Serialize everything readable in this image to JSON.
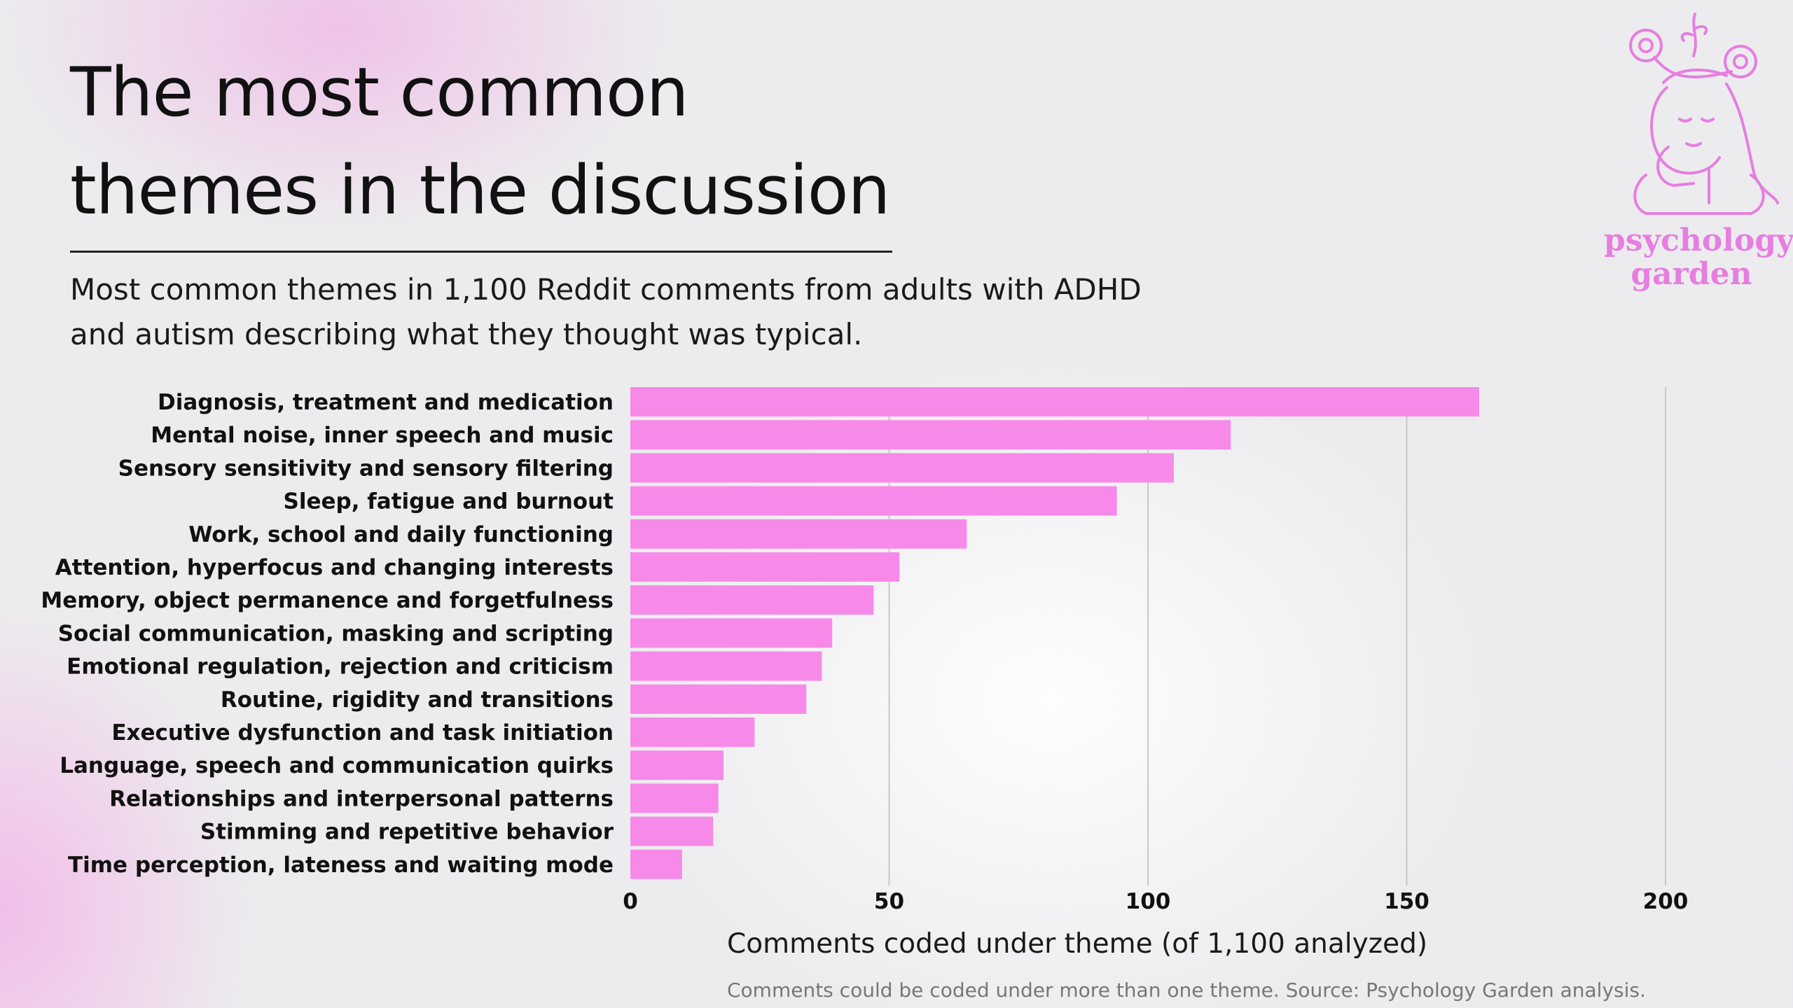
{
  "title_lines": [
    "The most common",
    "themes in the discussion"
  ],
  "subtitle_lines": [
    "Most common themes in 1,100 Reddit comments from adults with ADHD",
    "and autism describing what they thought was typical."
  ],
  "logo": {
    "line1": "psychology",
    "line2": "garden",
    "icon": "woman-with-flowers-logo"
  },
  "footnote": "Comments could be coded under more than one theme. Source: Psychology Garden analysis.",
  "colors": {
    "bar": "#f78ae9",
    "grid": "#c8c8c8",
    "accent": "#e67ee0"
  },
  "chart_data": {
    "type": "bar",
    "orientation": "horizontal",
    "categories": [
      "Diagnosis, treatment and medication",
      "Mental noise, inner speech and music",
      "Sensory sensitivity and sensory filtering",
      "Sleep, fatigue and burnout",
      "Work, school and daily functioning",
      "Attention, hyperfocus and changing interests",
      "Memory, object permanence and forgetfulness",
      "Social communication, masking and scripting",
      "Emotional regulation, rejection and criticism",
      "Routine, rigidity and transitions",
      "Executive dysfunction and task initiation",
      "Language, speech and communication quirks",
      "Relationships and interpersonal patterns",
      "Stimming and repetitive behavior",
      "Time perception, lateness and waiting mode"
    ],
    "values": [
      164,
      116,
      105,
      94,
      65,
      52,
      47,
      39,
      37,
      34,
      24,
      18,
      17,
      16,
      10
    ],
    "xlabel": "Comments coded under theme (of 1,100 analyzed)",
    "xlim": [
      0,
      200
    ],
    "xticks": [
      "0",
      "50",
      "100",
      "150",
      "200"
    ],
    "grid": "vertical",
    "legend": "none"
  }
}
